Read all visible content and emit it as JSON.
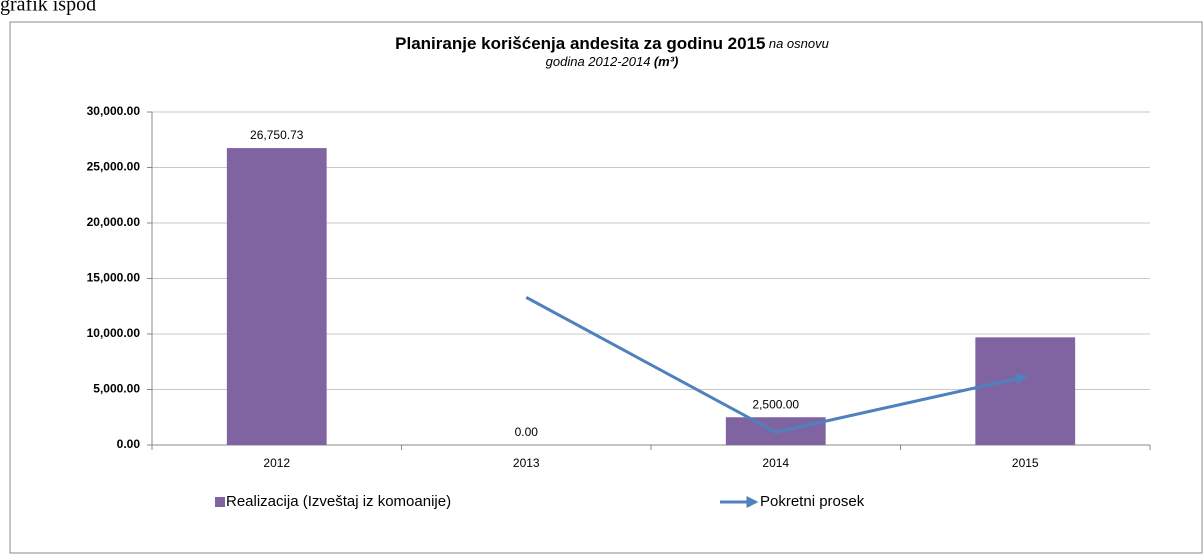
{
  "page_note_text": "grafik ispod",
  "chart_data": {
    "type": "bar",
    "title": "Planiranje korišćenja andesita za godinu 2015",
    "title_suffix": "na osnovu",
    "subtitle": "godina 2012-2014",
    "subtitle_unit": "(m³)",
    "categories": [
      "2012",
      "2013",
      "2014",
      "2015"
    ],
    "ylim": [
      0,
      30000
    ],
    "yticks": [
      {
        "value": 0,
        "label": "0.00"
      },
      {
        "value": 5000,
        "label": "5,000.00"
      },
      {
        "value": 10000,
        "label": "10,000.00"
      },
      {
        "value": 15000,
        "label": "15,000.00"
      },
      {
        "value": 20000,
        "label": "20,000.00"
      },
      {
        "value": 25000,
        "label": "25,000.00"
      },
      {
        "value": 30000,
        "label": "30,000.00"
      }
    ],
    "grid": true,
    "legend": "bottom",
    "series": [
      {
        "name": "Realizacija (Izveštaj iz komoanije)",
        "type": "bar",
        "color": "#8064a2",
        "values": [
          26750.73,
          0,
          2500,
          9700
        ],
        "value_labels": [
          "26,750.73",
          "0.00",
          "2,500.00",
          null
        ]
      },
      {
        "name": "Pokretni prosek",
        "type": "line",
        "color": "#4f81bd",
        "values": [
          null,
          13300,
          1150,
          6150
        ]
      }
    ]
  }
}
